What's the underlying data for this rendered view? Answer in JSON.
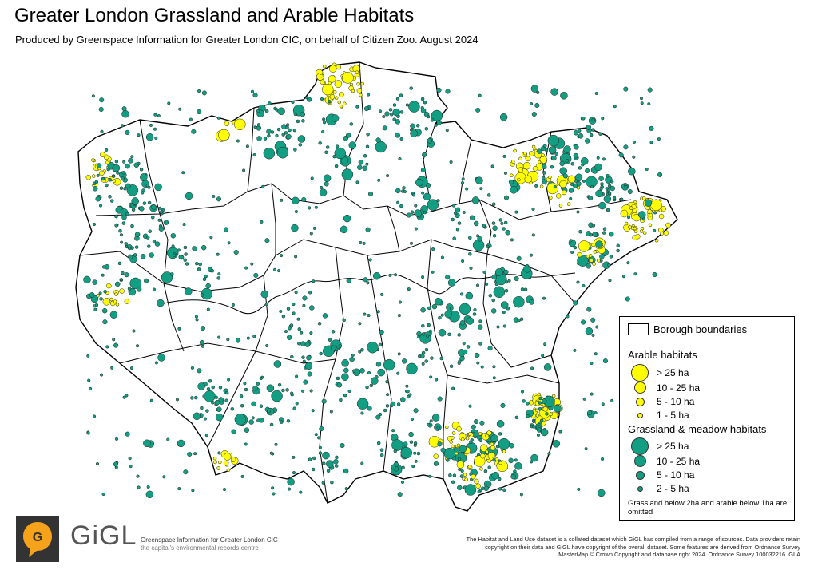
{
  "title": "Greater London Grassland and Arable Habitats",
  "subtitle": "Produced by Greenspace Information for Greater London CIC, on behalf of Citizen Zoo. August 2024",
  "colors": {
    "arable": "#ffff00",
    "grassland": "#129e82",
    "boundary": "#000000",
    "logo_bg": "#333333",
    "logo_accent": "#f6a21b"
  },
  "legend": {
    "borough_label": "Borough boundaries",
    "arable_heading": "Arable habitats",
    "arable_classes": [
      "> 25 ha",
      "10 - 25 ha",
      "5 - 10 ha",
      "1 - 5 ha"
    ],
    "grassland_heading": "Grassland & meadow habitats",
    "grassland_classes": [
      "> 25 ha",
      "10 - 25 ha",
      "5 - 10 ha",
      "2 - 5 ha"
    ],
    "note": "Grassland below 2ha and arable below 1ha are omitted"
  },
  "logo": {
    "letter": "G",
    "wordmark": "GiGL",
    "org_name": "Greenspace Information for Greater London CIC",
    "tagline": "the capital's environmental records centre"
  },
  "copyright": "The Habitat and Land Use dataset is a collated dataset which GiGL has compiled from a range of sources. Data providers retain copyright on their data and GiGL have copyright of the overall dataset. Some features are derived from Ordnance Survey MasterMap © Crown Copyright and database right 2024. Ordnance Survey 100032216. GLA"
}
